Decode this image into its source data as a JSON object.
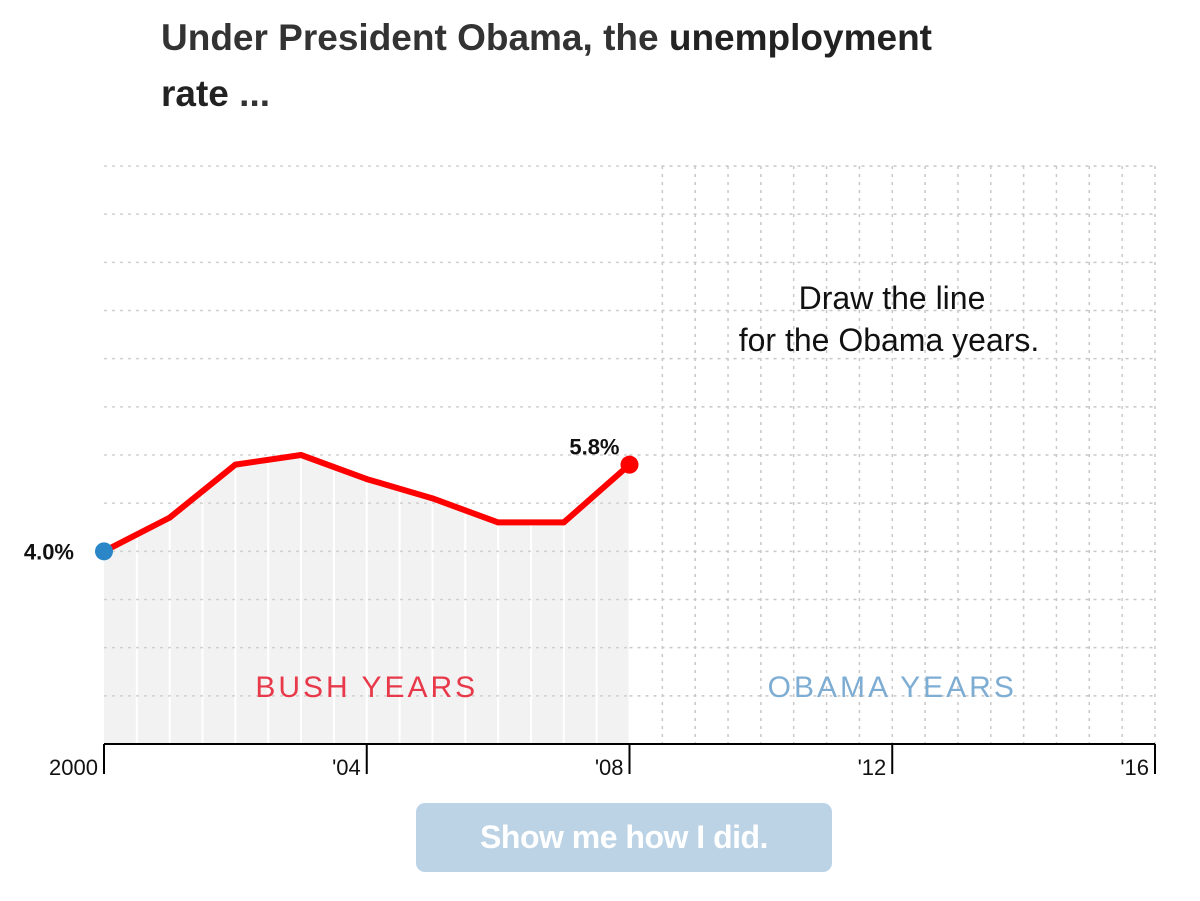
{
  "headline": {
    "prefix": "Under President Obama, the ",
    "emphasis_1": "unemployment",
    "emphasis_2": "rate",
    "suffix": " ..."
  },
  "chart_data": {
    "type": "line",
    "x_domain": [
      2000,
      2016
    ],
    "ylim": [
      0,
      12
    ],
    "grid": true,
    "x_ticks": [
      {
        "value": 2000,
        "label": "2000"
      },
      {
        "value": 2004,
        "label": "'04"
      },
      {
        "value": 2008,
        "label": "'08"
      },
      {
        "value": 2012,
        "label": "'12"
      },
      {
        "value": 2016,
        "label": "'16"
      }
    ],
    "series": [
      {
        "x": [
          2000,
          2001,
          2002,
          2003,
          2004,
          2005,
          2006,
          2007,
          2008
        ],
        "values": [
          4.0,
          4.7,
          5.8,
          6.0,
          5.5,
          5.1,
          4.6,
          4.6,
          5.8
        ],
        "color": "#ff0000"
      }
    ],
    "start_label": "4.0%",
    "end_label": "5.8%",
    "start_marker_color": "#2a86c6",
    "end_marker_color": "#ff0000",
    "prompt": [
      "Draw the line",
      "for the Obama years."
    ],
    "periods": [
      {
        "label": "BUSH YEARS",
        "start": 2000,
        "end": 2008,
        "color": "#e8394a",
        "shaded": true
      },
      {
        "label": "OBAMA YEARS",
        "start": 2008,
        "end": 2016,
        "color": "#7eadd3",
        "shaded": false
      }
    ]
  },
  "button": {
    "label": "Show me how I did.",
    "color": "#bcd3e6"
  }
}
